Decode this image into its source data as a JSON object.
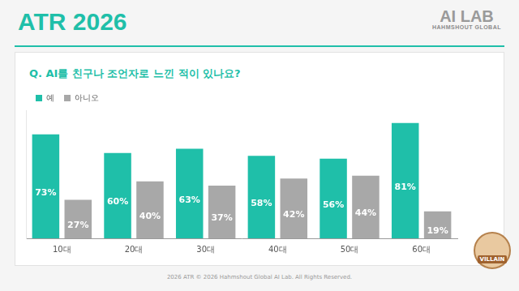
{
  "page": {
    "header": "ATR 2026",
    "logo": [
      "AI LAB",
      "HAHMSHOUT GLOBAL"
    ],
    "badge": "VILLAIN",
    "footer": "2026 ATR © 2026 Hahmshout Global AI Lab. All Rights Reserved."
  },
  "chart_data": {
    "type": "bar",
    "title": "Q. AI를 친구나 조언자로 느낀 적이 있나요?",
    "categories": [
      "10대",
      "20대",
      "30대",
      "40대",
      "50대",
      "60대"
    ],
    "series": [
      {
        "name": "예",
        "color": "#1fbfa9",
        "values": [
          73,
          60,
          63,
          58,
          56,
          81
        ],
        "value_labels": [
          "73%",
          "60%",
          "63%",
          "58%",
          "56%",
          "81%"
        ]
      },
      {
        "name": "아니오",
        "color": "#a8a8a8",
        "values": [
          27,
          40,
          37,
          42,
          44,
          19
        ],
        "value_labels": [
          "27%",
          "40%",
          "37%",
          "42%",
          "44%",
          "19%"
        ]
      }
    ],
    "ylim": [
      0,
      90
    ],
    "grid": false,
    "legend": "top-left",
    "data_labels": true,
    "tick_labels": "x"
  }
}
